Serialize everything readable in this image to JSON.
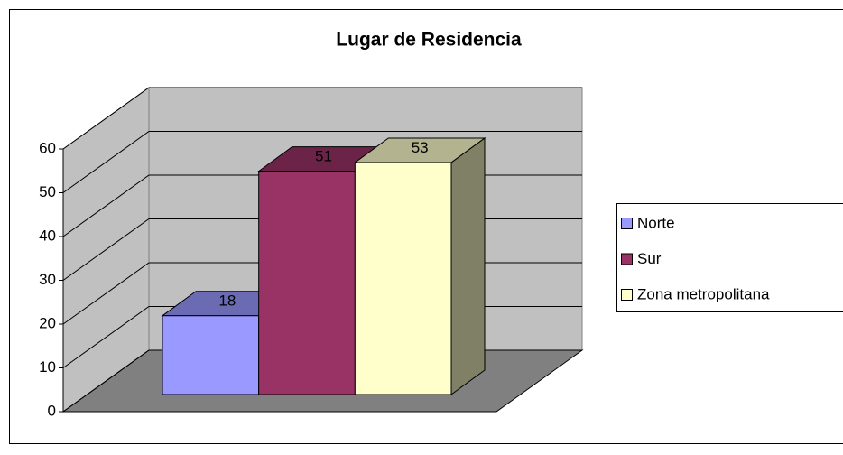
{
  "chart_data": {
    "type": "bar3d",
    "title": "Lugar de Residencia",
    "categories": [
      null
    ],
    "series": [
      {
        "name": "Norte",
        "color": "#9999ff",
        "values": [
          18
        ]
      },
      {
        "name": "Sur",
        "color": "#993366",
        "values": [
          51
        ]
      },
      {
        "name": "Zona metropolitana",
        "color": "#ffffcc",
        "values": [
          53
        ]
      }
    ],
    "ylim": [
      0,
      60
    ],
    "yticks": [
      0,
      10,
      20,
      30,
      40,
      50,
      60
    ],
    "grid": true,
    "legend": "right"
  }
}
